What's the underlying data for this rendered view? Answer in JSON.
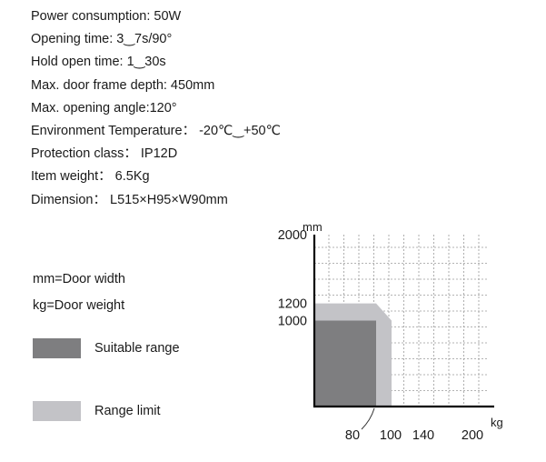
{
  "specs": [
    "Power consumption: 50W",
    "Opening time: 3‿7s/90°",
    "Hold open time: 1‿30s",
    "Max. door frame depth: 450mm",
    "Max. opening angle:120°",
    "Environment Temperature： -20℃‿+50℃",
    "Protection class： IP12D",
    "Item weight： 6.5Kg",
    "Dimension： L515×H95×W90mm"
  ],
  "legend": {
    "mm_note": "mm=Door width",
    "kg_note": "kg=Door weight",
    "suitable_label": "Suitable range",
    "limit_label": "Range limit"
  },
  "colors": {
    "suitable": "#7e7e80",
    "limit": "#c3c3c7",
    "grid": "#9a9a9a",
    "axis": "#000000"
  },
  "chart_data": {
    "type": "area",
    "xlabel": "kg",
    "ylabel": "mm",
    "x_ticks": [
      80,
      100,
      140,
      200
    ],
    "y_ticks": [
      1000,
      1200,
      2000
    ],
    "series": [
      {
        "name": "Suitable range",
        "x": [
          0,
          80,
          80,
          0
        ],
        "y": [
          1000,
          1000,
          0,
          0
        ]
      },
      {
        "name": "Range limit",
        "x": [
          0,
          80,
          100,
          100,
          0
        ],
        "y": [
          1200,
          1200,
          1000,
          0,
          0
        ]
      }
    ],
    "grid": true
  }
}
